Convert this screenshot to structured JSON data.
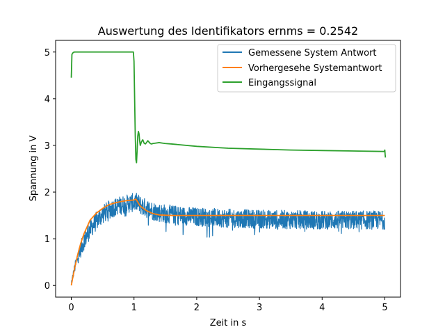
{
  "chart_data": {
    "type": "line",
    "title": "Auswertung des Identifikators ernms = 0.2542",
    "xlabel": "Zeit in s",
    "ylabel": "Spannung in V",
    "xlim": [
      -0.25,
      5.25
    ],
    "ylim": [
      -0.25,
      5.25
    ],
    "xticks": [
      0,
      1,
      2,
      3,
      4,
      5
    ],
    "yticks": [
      0,
      1,
      2,
      3,
      4,
      5
    ],
    "xtick_labels": [
      "0",
      "1",
      "2",
      "3",
      "4",
      "5"
    ],
    "ytick_labels": [
      "0",
      "1",
      "2",
      "3",
      "4",
      "5"
    ],
    "grid": false,
    "legend_position": "top-right",
    "series": [
      {
        "name": "Gemessene System Antwort",
        "color": "#1f77b4",
        "style": "noisy",
        "x": [
          0,
          0.05,
          0.1,
          0.2,
          0.3,
          0.4,
          0.5,
          0.6,
          0.7,
          0.8,
          0.9,
          1.0,
          1.05,
          1.1,
          1.2,
          1.3,
          1.4,
          1.6,
          1.8,
          2.0,
          2.5,
          3.0,
          3.5,
          4.0,
          4.5,
          5.0
        ],
        "y": [
          0.05,
          0.35,
          0.6,
          0.95,
          1.2,
          1.38,
          1.52,
          1.62,
          1.68,
          1.72,
          1.75,
          1.78,
          1.78,
          1.72,
          1.65,
          1.6,
          1.56,
          1.52,
          1.49,
          1.47,
          1.44,
          1.42,
          1.41,
          1.4,
          1.4,
          1.4
        ],
        "noise_amplitude": [
          0.05,
          0.1,
          0.15,
          0.2,
          0.2,
          0.2,
          0.2,
          0.2,
          0.2,
          0.2,
          0.2,
          0.2,
          0.2,
          0.2,
          0.2,
          0.2,
          0.2,
          0.2,
          0.2,
          0.2,
          0.2,
          0.2,
          0.2,
          0.2,
          0.2,
          0.2
        ]
      },
      {
        "name": "Vorhergesehe Systemantwort",
        "color": "#ff7f0e",
        "x": [
          0,
          0.05,
          0.1,
          0.15,
          0.2,
          0.25,
          0.3,
          0.4,
          0.5,
          0.6,
          0.7,
          0.8,
          0.9,
          1.0,
          1.03,
          1.1,
          1.2,
          1.3,
          1.4,
          1.6,
          2.0,
          3.0,
          4.0,
          5.0
        ],
        "y": [
          0.0,
          0.35,
          0.65,
          0.9,
          1.1,
          1.25,
          1.4,
          1.55,
          1.65,
          1.73,
          1.77,
          1.8,
          1.82,
          1.83,
          1.85,
          1.7,
          1.6,
          1.54,
          1.51,
          1.5,
          1.5,
          1.5,
          1.5,
          1.5
        ]
      },
      {
        "name": "Eingangssignal",
        "color": "#2ca02c",
        "x": [
          0,
          0.01,
          0.03,
          0.05,
          0.1,
          0.5,
          0.9,
          0.99,
          1.0,
          1.01,
          1.02,
          1.03,
          1.04,
          1.05,
          1.06,
          1.07,
          1.08,
          1.09,
          1.1,
          1.12,
          1.14,
          1.16,
          1.18,
          1.2,
          1.22,
          1.24,
          1.26,
          1.28,
          1.3,
          1.35,
          1.4,
          1.45,
          1.5,
          1.6,
          2.0,
          2.5,
          3.0,
          3.5,
          4.0,
          4.5,
          4.99,
          5.0,
          5.005,
          5.01
        ],
        "y": [
          4.45,
          4.95,
          4.99,
          5.0,
          5.0,
          5.0,
          5.0,
          5.0,
          4.8,
          4.0,
          3.2,
          2.7,
          2.63,
          2.9,
          3.2,
          3.3,
          3.25,
          3.1,
          3.0,
          3.08,
          3.12,
          3.05,
          3.03,
          3.06,
          3.1,
          3.07,
          3.04,
          3.03,
          3.04,
          3.05,
          3.06,
          3.05,
          3.04,
          3.03,
          2.98,
          2.94,
          2.92,
          2.9,
          2.89,
          2.88,
          2.87,
          2.9,
          2.8,
          2.74
        ]
      }
    ]
  }
}
